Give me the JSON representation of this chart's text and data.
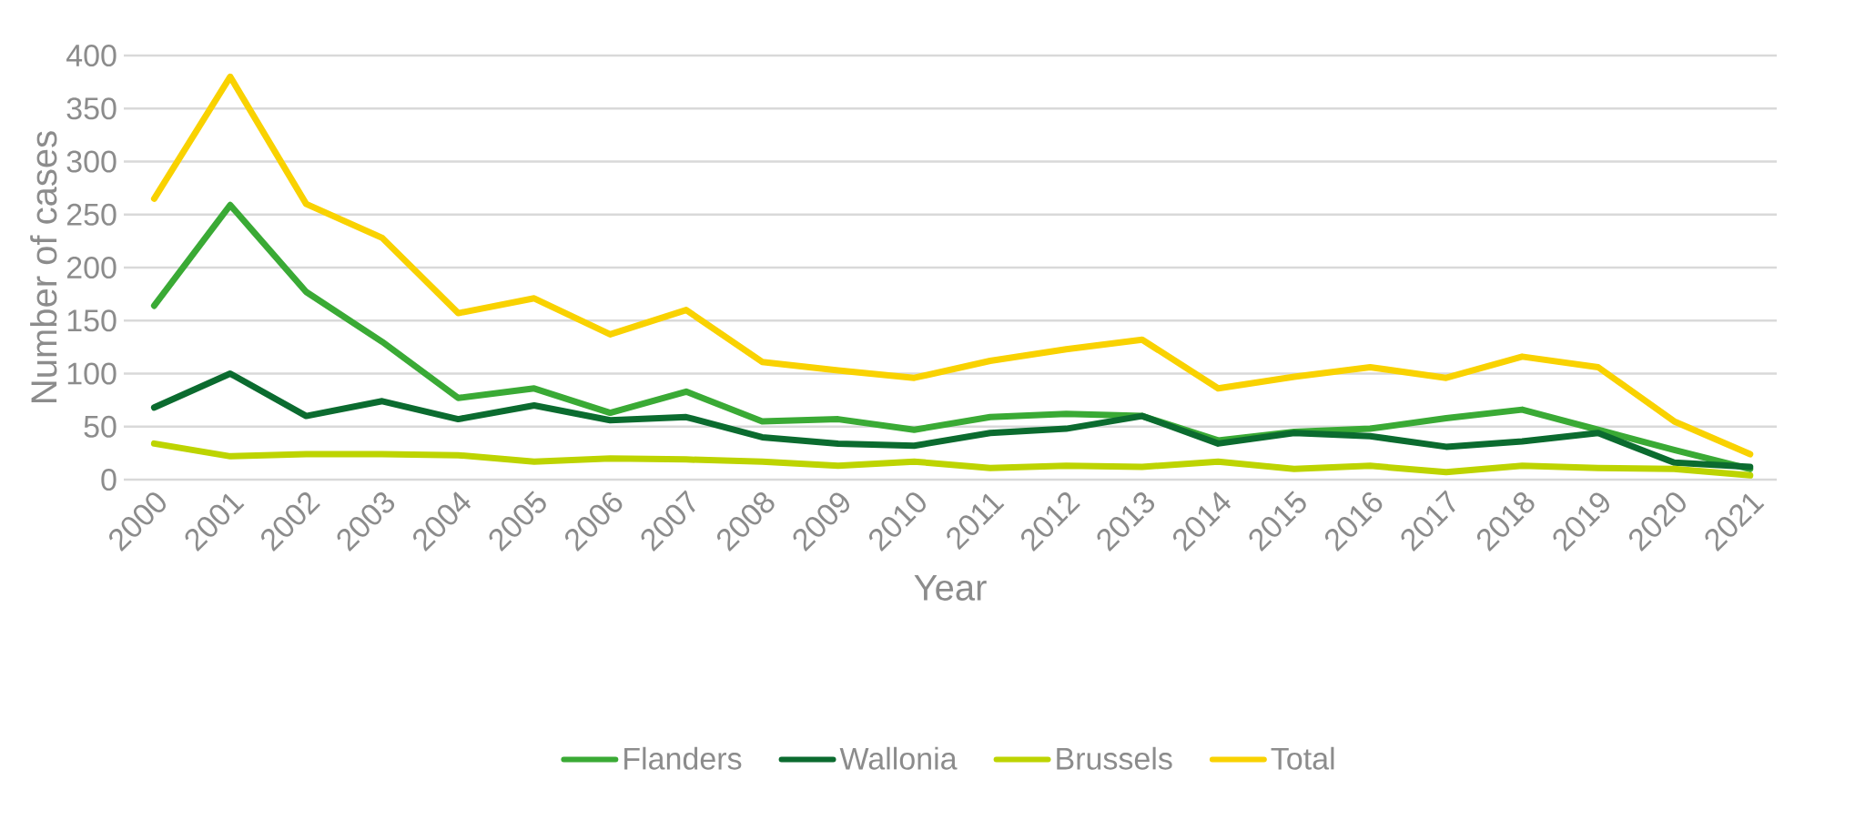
{
  "chart_data": {
    "type": "line",
    "xlabel": "Year",
    "ylabel": "Number of cases",
    "categories": [
      "2000",
      "2001",
      "2002",
      "2003",
      "2004",
      "2005",
      "2006",
      "2007",
      "2008",
      "2009",
      "2010",
      "2011",
      "2012",
      "2013",
      "2014",
      "2015",
      "2016",
      "2017",
      "2018",
      "2019",
      "2020",
      "2021"
    ],
    "series": [
      {
        "name": "Flanders",
        "color": "#3aaa35",
        "values": [
          164,
          259,
          177,
          130,
          77,
          86,
          63,
          83,
          55,
          57,
          47,
          59,
          62,
          60,
          37,
          45,
          48,
          58,
          66,
          47,
          28,
          10
        ]
      },
      {
        "name": "Wallonia",
        "color": "#0b6b2f",
        "values": [
          68,
          100,
          60,
          74,
          57,
          70,
          56,
          59,
          40,
          34,
          32,
          44,
          48,
          60,
          34,
          44,
          41,
          31,
          36,
          44,
          16,
          12
        ]
      },
      {
        "name": "Brussels",
        "color": "#bdd400",
        "values": [
          34,
          22,
          24,
          24,
          23,
          17,
          20,
          19,
          17,
          13,
          17,
          11,
          13,
          12,
          17,
          10,
          13,
          7,
          13,
          11,
          10,
          4
        ]
      },
      {
        "name": "Total",
        "color": "#f9d200",
        "values": [
          265,
          380,
          260,
          228,
          157,
          171,
          137,
          160,
          111,
          103,
          96,
          112,
          123,
          132,
          86,
          97,
          106,
          96,
          116,
          106,
          55,
          24
        ]
      }
    ],
    "ylim": [
      0,
      400
    ],
    "yticks": [
      0,
      50,
      100,
      150,
      200,
      250,
      300,
      350,
      400
    ],
    "grid": "y",
    "legend": "bottom",
    "marker": "none",
    "line_style": "solid"
  }
}
